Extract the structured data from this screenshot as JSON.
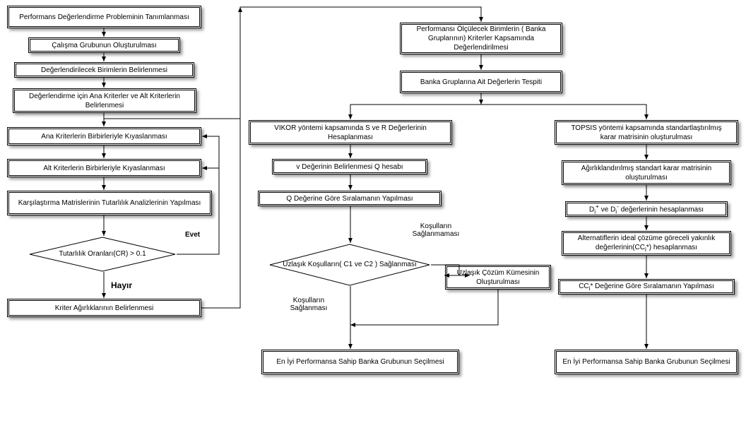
{
  "flowchart": {
    "type": "flowchart",
    "background_color": "#ffffff",
    "box_border": "#000000",
    "shadow_color": "rgba(0,0,0,0.4)",
    "font_family": "Arial",
    "font_size": 10,
    "nodes": {
      "n1": "Performans Değerlendirme Probleminin Tanımlanması",
      "n2": "Çalışma Grubunun Oluşturulması",
      "n3": "Değerlendirilecek Birimlerin  Belirlenmesi",
      "n4": "Değerlendirme için Ana Kriterler ve Alt Kriterlerin Belirlenmesi",
      "n5": "Ana Kriterlerin Birbirleriyle Kıyaslanması",
      "n6": "Alt Kriterlerin Birbirleriyle Kıyaslanması",
      "n7": "Karşılaştırma Matrislerinin Tutarlılık Analizlerinin Yapılması",
      "d1": "Tutarlılık Oranları(CR) > 0.1",
      "n8": "Kriter Ağırlıklarının Belirlenmesi",
      "n9": "Performansı Ölçülecek Birimlerin ( Banka Gruplarının)  Kriterler Kapsamında Değerlendirilmesi",
      "n10": "Banka Gruplarına Ait Değerlerin Tespiti",
      "n11": "VIKOR yöntemi kapsamında S ve R Değerlerinin Hesaplanması",
      "n12": "v Değerinin Belirlenmesi Q hesabı",
      "n13": "Q Değerine Göre Sıralamanın Yapılması",
      "d2": "Uzlaşık Koşulların( C1 ve C2 ) Sağlanması",
      "n14": "Uzlaşık Çözüm Kümesinin Oluşturulması",
      "n15": "En İyi Performansa Sahip Banka Grubunun Seçilmesi",
      "n16": "TOPSIS yöntemi kapsamında standartlaştırılmış karar matrisinin oluşturulması",
      "n17": "Ağırlıklandırılmış standart karar matrisinin oluşturulması",
      "n18_html": "D<sub>i</sub><sup>+</sup> ve D<sub>i</sub><sup>-</sup> değerlerinin hesaplanması",
      "n19_html": "Alternatiflerin ideal çözüme göreceli yakınlık değerlerinin(CC<sub>i</sub>*) hesaplanması",
      "n20_html": "CC<sub>i</sub>* Değerine Göre Sıralamanın Yapılması",
      "n21": "En İyi Performansa Sahip Banka Grubunun Seçilmesi"
    },
    "labels": {
      "evet": "Evet",
      "hayir": "Hayır",
      "kosul_sag": "Koşulların Sağlanması",
      "kosul_sagmama": "Koşulların Sağlanmaması"
    }
  }
}
